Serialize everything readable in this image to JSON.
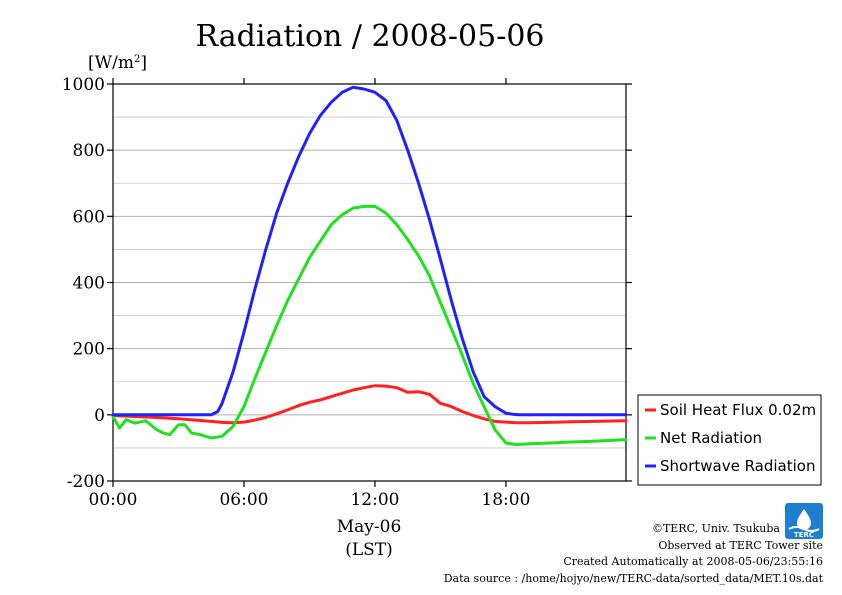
{
  "chart_data": {
    "type": "line",
    "title": "Radiation / 2008-05-06",
    "unit_label_prefix": "[W/m",
    "unit_label_sup": "2",
    "unit_label_suffix": "]",
    "xlabel_date": "May-06",
    "xlabel_tz": "(LST)",
    "xlim": [
      0,
      23.5
    ],
    "ylim": [
      -200,
      1000
    ],
    "x_ticks": [
      {
        "value": 0,
        "label": "00:00"
      },
      {
        "value": 6,
        "label": "06:00"
      },
      {
        "value": 12,
        "label": "12:00"
      },
      {
        "value": 18,
        "label": "18:00"
      }
    ],
    "y_ticks": [
      {
        "value": -200,
        "label": "-200"
      },
      {
        "value": 0,
        "label": "0"
      },
      {
        "value": 200,
        "label": "200"
      },
      {
        "value": 400,
        "label": "400"
      },
      {
        "value": 600,
        "label": "600"
      },
      {
        "value": 800,
        "label": "800"
      },
      {
        "value": 1000,
        "label": "1000"
      }
    ],
    "grid": true,
    "legend_position": "bottom-right outside",
    "series": [
      {
        "name": "Soil Heat Flux 0.02m",
        "color": "#ff2020",
        "x": [
          0,
          1,
          2,
          3,
          4,
          4.5,
          5,
          5.5,
          6,
          6.5,
          7,
          7.5,
          8,
          8.5,
          9,
          9.5,
          10,
          10.5,
          11,
          11.5,
          12,
          12.5,
          13,
          13.5,
          14,
          14.5,
          15,
          15.5,
          16,
          16.5,
          17,
          17.5,
          18,
          18.5,
          19,
          20,
          21,
          22,
          23.5
        ],
        "y": [
          -2,
          -5,
          -8,
          -12,
          -17,
          -20,
          -23,
          -24,
          -22,
          -16,
          -8,
          3,
          15,
          28,
          38,
          45,
          55,
          65,
          75,
          82,
          88,
          87,
          82,
          68,
          70,
          62,
          35,
          25,
          10,
          -2,
          -12,
          -20,
          -22,
          -24,
          -24,
          -23,
          -21,
          -20,
          -18
        ]
      },
      {
        "name": "Net Radiation",
        "color": "#20e020",
        "x": [
          0,
          0.3,
          0.6,
          1,
          1.5,
          2,
          2.3,
          2.6,
          3,
          3.3,
          3.6,
          4,
          4.5,
          5,
          5.5,
          6,
          6.5,
          7,
          7.5,
          8,
          8.5,
          9,
          9.5,
          10,
          10.5,
          11,
          11.5,
          12,
          12.5,
          13,
          13.5,
          14,
          14.5,
          15,
          15.5,
          16,
          16.5,
          17,
          17.5,
          18,
          18.5,
          19,
          20,
          21,
          22,
          23.5
        ],
        "y": [
          -5,
          -40,
          -15,
          -25,
          -18,
          -45,
          -55,
          -60,
          -30,
          -30,
          -55,
          -60,
          -70,
          -65,
          -35,
          25,
          110,
          190,
          270,
          345,
          410,
          475,
          525,
          575,
          605,
          625,
          630,
          630,
          610,
          575,
          530,
          480,
          420,
          340,
          260,
          180,
          95,
          25,
          -45,
          -85,
          -90,
          -88,
          -85,
          -82,
          -80,
          -75
        ]
      },
      {
        "name": "Shortwave Radiation",
        "color": "#2020ff",
        "x": [
          0,
          1,
          2,
          3,
          4,
          4.5,
          4.8,
          5,
          5.5,
          6,
          6.5,
          7,
          7.5,
          8,
          8.5,
          9,
          9.5,
          10,
          10.5,
          11,
          11.5,
          12,
          12.5,
          13,
          13.5,
          14,
          14.5,
          15,
          15.5,
          16,
          16.5,
          17,
          17.5,
          18,
          18.3,
          18.6,
          19,
          20,
          21,
          22,
          23.5
        ],
        "y": [
          0,
          0,
          0,
          0,
          0,
          0,
          10,
          35,
          130,
          250,
          380,
          500,
          610,
          700,
          780,
          850,
          905,
          945,
          975,
          990,
          985,
          975,
          950,
          890,
          800,
          700,
          590,
          470,
          345,
          230,
          130,
          55,
          25,
          5,
          2,
          0,
          0,
          0,
          0,
          0,
          0
        ]
      }
    ]
  },
  "credits": {
    "copyright": "©TERC, Univ. Tsukuba",
    "site": "Observed at TERC Tower site",
    "created": "Created Automatically at 2008-05-06/23:55:16",
    "source": "Data source : /home/hojyo/new/TERC-data/sorted_data/MET.10s.dat",
    "logo_text": "TERC"
  }
}
